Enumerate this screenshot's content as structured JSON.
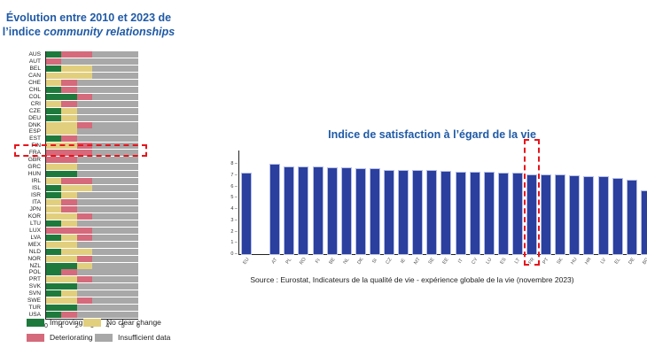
{
  "left_title": {
    "line1": "Évolution entre 2010 et 2023 de",
    "line2_plain": "l’indice ",
    "line2_italic": "community relationships"
  },
  "right_title": "Indice de satisfaction à l’égard de la vie",
  "source": "Source : Eurostat, Indicateurs de la qualité de vie - expérience globale de la vie (novembre 2023)",
  "colors": {
    "improving": "#1e7a3c",
    "no_change": "#e2cf7e",
    "deteriorating": "#d46a7b",
    "insufficient": "#a8a8a8",
    "bar_blue": "#2a3f9e",
    "title_blue": "#1f5aa6",
    "highlight": "#e8141b"
  },
  "legend": {
    "improving": "Improving",
    "no_change": "No clear change",
    "deteriorating": "Deteriorating",
    "insufficient": "Insufficient data"
  },
  "chart_data": [
    {
      "type": "bar",
      "orientation": "horizontal-stacked",
      "title": "Évolution entre 2010 et 2023 de l’indice community relationships",
      "xlim": [
        0,
        6
      ],
      "xticks": [
        "0",
        "1",
        "2",
        "3",
        "4",
        "5",
        "6"
      ],
      "legend_position": "bottom",
      "highlighted": "FRA",
      "categories": [
        "AUS",
        "AUT",
        "BEL",
        "CAN",
        "CHE",
        "CHL",
        "COL",
        "CRI",
        "CZE",
        "DEU",
        "DNK",
        "ESP",
        "EST",
        "FIN",
        "FRA",
        "GBR",
        "GRC",
        "HUN",
        "IRL",
        "ISL",
        "ISR",
        "ITA",
        "JPN",
        "KOR",
        "LTU",
        "LUX",
        "LVA",
        "MEX",
        "NLD",
        "NOR",
        "NZL",
        "POL",
        "PRT",
        "SVK",
        "SVN",
        "SWE",
        "TUR",
        "USA"
      ],
      "series": [
        {
          "name": "Improving",
          "values": [
            1,
            0,
            1,
            0,
            0,
            1,
            2,
            0,
            1,
            1,
            0,
            0,
            1,
            0,
            0,
            0,
            0,
            2,
            0,
            1,
            1,
            0,
            0,
            0,
            1,
            0,
            1,
            0,
            1,
            0,
            2,
            1,
            0,
            2,
            1,
            0,
            2,
            1
          ]
        },
        {
          "name": "No clear change",
          "values": [
            0,
            0,
            2,
            3,
            1,
            0,
            0,
            1,
            1,
            1,
            2,
            2,
            0,
            2,
            0,
            0,
            2,
            0,
            1,
            2,
            1,
            1,
            1,
            2,
            1,
            0,
            1,
            2,
            2,
            2,
            1,
            0,
            2,
            0,
            1,
            2,
            0,
            0
          ]
        },
        {
          "name": "Deteriorating",
          "values": [
            2,
            1,
            0,
            0,
            1,
            1,
            1,
            1,
            0,
            0,
            1,
            0,
            1,
            1,
            3,
            2,
            0,
            0,
            2,
            0,
            0,
            1,
            1,
            1,
            0,
            3,
            1,
            0,
            0,
            1,
            0,
            1,
            1,
            0,
            0,
            1,
            0,
            1
          ]
        },
        {
          "name": "Insufficient data",
          "values": [
            3,
            5,
            3,
            3,
            4,
            4,
            3,
            4,
            4,
            4,
            3,
            4,
            4,
            3,
            3,
            4,
            4,
            4,
            3,
            3,
            4,
            4,
            4,
            3,
            4,
            3,
            3,
            4,
            3,
            3,
            3,
            4,
            3,
            4,
            4,
            3,
            4,
            4
          ]
        }
      ]
    },
    {
      "type": "bar",
      "title": "Indice de satisfaction à l’égard de la vie",
      "xlabel": "",
      "ylabel": "",
      "ylim": [
        0,
        8
      ],
      "yticks": [
        "0",
        "1",
        "2",
        "3",
        "4",
        "5",
        "6",
        "7",
        "8"
      ],
      "highlighted": "FR",
      "categories": [
        "EU",
        "",
        "AT",
        "PL",
        "RO",
        "FI",
        "BE",
        "NL",
        "DK",
        "SI",
        "CZ",
        "IE",
        "MT",
        "SE",
        "EE",
        "IT",
        "CY",
        "LU",
        "ES",
        "LT",
        "FR",
        "PT",
        "SK",
        "HU",
        "HR",
        "LV",
        "EL",
        "DE",
        "BG"
      ],
      "values": [
        7.1,
        null,
        7.9,
        7.7,
        7.7,
        7.7,
        7.6,
        7.6,
        7.5,
        7.5,
        7.4,
        7.4,
        7.4,
        7.4,
        7.3,
        7.2,
        7.2,
        7.2,
        7.1,
        7.1,
        7.0,
        7.0,
        7.0,
        6.9,
        6.8,
        6.8,
        6.7,
        6.5,
        5.6
      ]
    }
  ]
}
